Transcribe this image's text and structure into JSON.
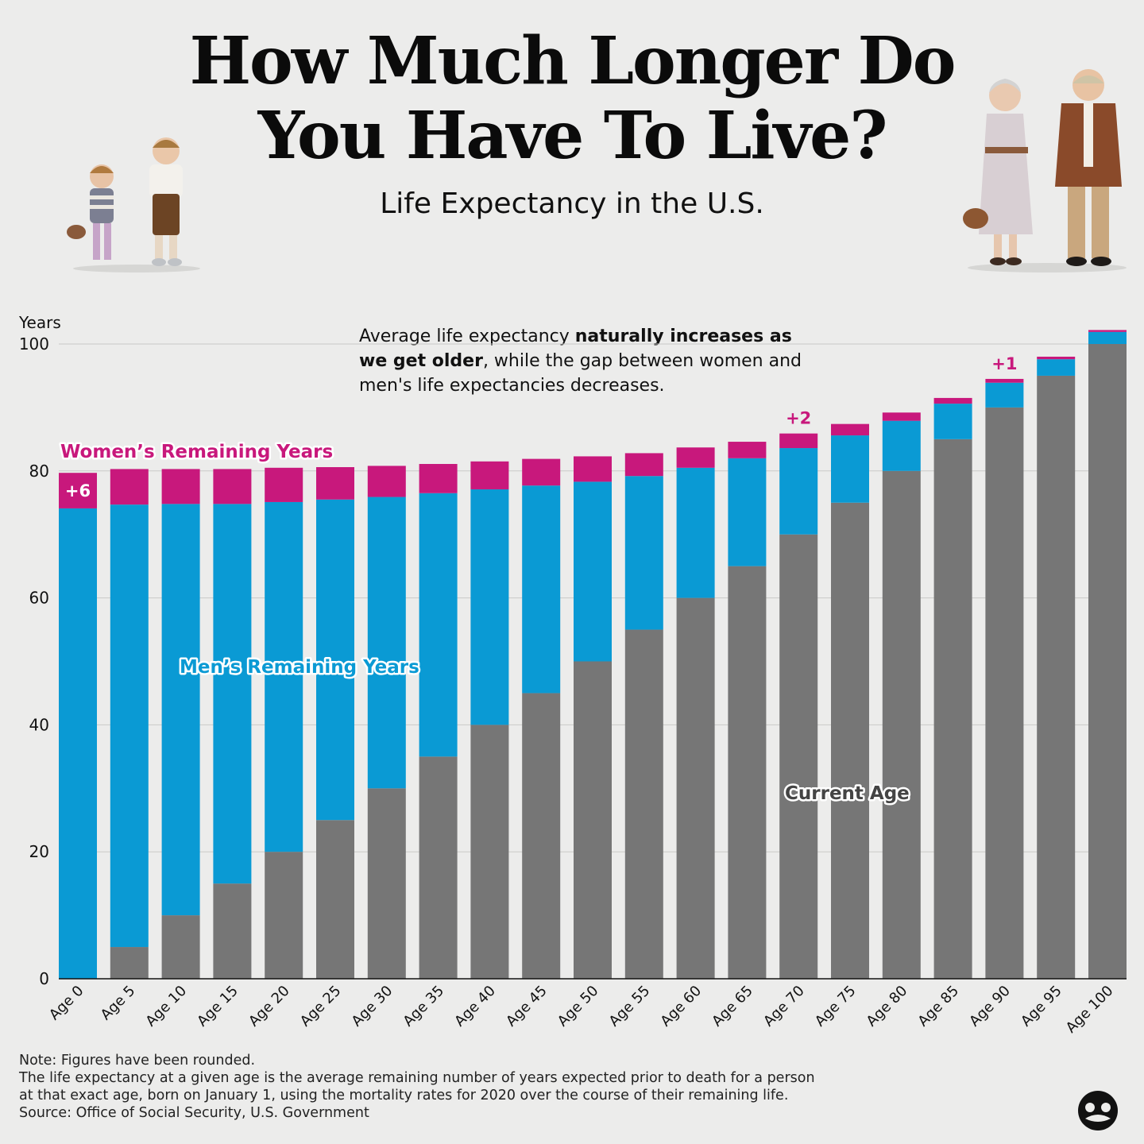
{
  "header": {
    "title_line1": "How Much Longer Do",
    "title_line2": "You Have To Live?",
    "subtitle": "Life Expectancy in the U.S."
  },
  "annotation": {
    "part1": "Average life expectancy ",
    "bold": "naturally increases as we get older",
    "part2": ", while the gap between women and men's life expectancies decreases."
  },
  "notes": {
    "line1": "Note: Figures have been rounded.",
    "line2": "The life expectancy at a given age is the average remaining number of years expected prior to death for a person",
    "line3": "at that exact age, born on January 1, using the mortality rates for 2020 over the course of their remaining life.",
    "line4": "Source: Office of Social Security, U.S. Government"
  },
  "colors": {
    "current_age": "#767676",
    "men": "#0a9ad4",
    "women": "#c8187c",
    "background": "#ececeb"
  },
  "illustrations": [
    "children-figurines",
    "elderly-couple-figurines",
    "logo-icon"
  ],
  "chart_data": {
    "type": "bar",
    "stacked": true,
    "ylabel": "Years",
    "ylim": [
      0,
      100
    ],
    "yticks": [
      0,
      20,
      40,
      60,
      80,
      100
    ],
    "grid": true,
    "categories": [
      "Age 0",
      "Age 5",
      "Age 10",
      "Age 15",
      "Age 20",
      "Age 25",
      "Age 30",
      "Age 35",
      "Age 40",
      "Age 45",
      "Age 50",
      "Age 55",
      "Age 60",
      "Age 65",
      "Age 70",
      "Age 75",
      "Age 80",
      "Age 85",
      "Age 90",
      "Age 95",
      "Age 100"
    ],
    "series": [
      {
        "name": "Current Age",
        "values": [
          0,
          5,
          10,
          15,
          20,
          25,
          30,
          35,
          40,
          45,
          50,
          55,
          60,
          65,
          70,
          75,
          80,
          85,
          90,
          95,
          100
        ]
      },
      {
        "name": "Men’s Remaining Years",
        "values": [
          74.1,
          69.7,
          64.8,
          59.8,
          55.1,
          50.5,
          45.9,
          41.5,
          37.1,
          32.7,
          28.3,
          24.2,
          20.5,
          17.0,
          13.6,
          10.6,
          7.9,
          5.6,
          3.9,
          2.6,
          1.9
        ]
      },
      {
        "name": "Women’s Remaining Years",
        "values": [
          5.6,
          5.6,
          5.5,
          5.5,
          5.4,
          5.1,
          4.9,
          4.6,
          4.4,
          4.2,
          4.0,
          3.6,
          3.2,
          2.6,
          2.3,
          1.8,
          1.3,
          0.9,
          0.6,
          0.4,
          0.3
        ]
      }
    ],
    "annotations": [
      {
        "category": "Age 0",
        "text": "+6"
      },
      {
        "category": "Age 70",
        "text": "+2"
      },
      {
        "category": "Age 90",
        "text": "+1"
      }
    ]
  }
}
